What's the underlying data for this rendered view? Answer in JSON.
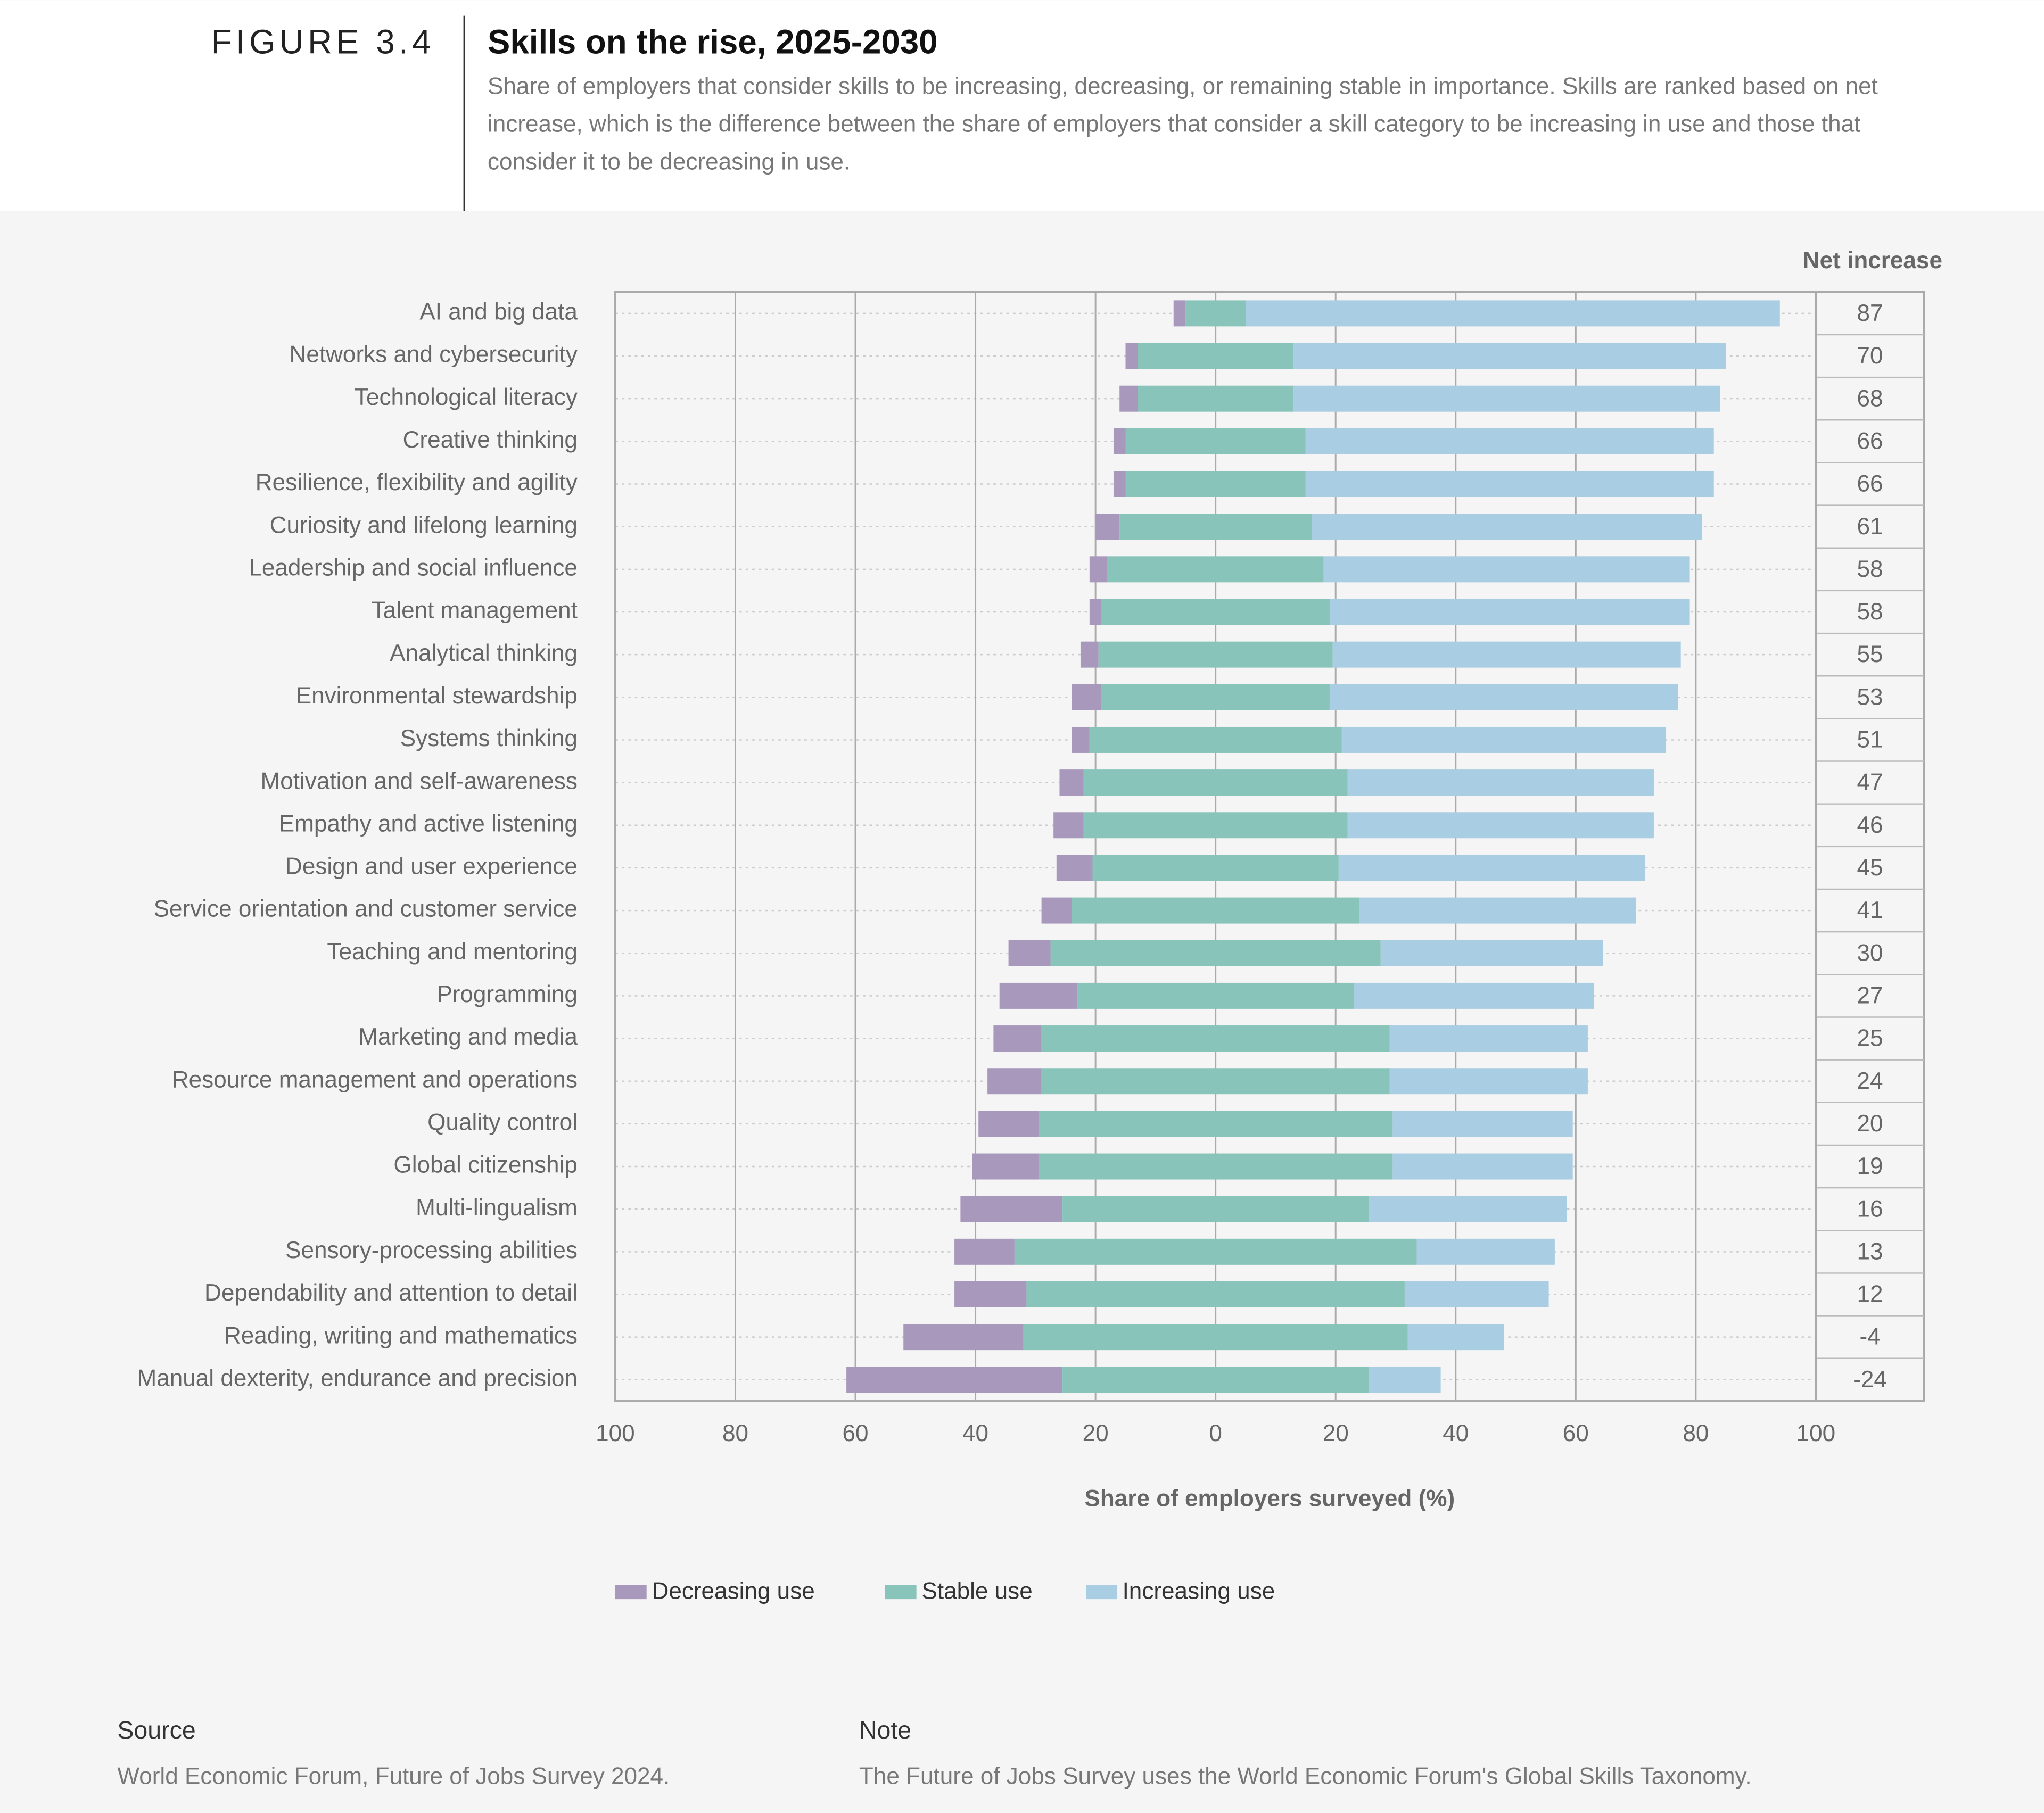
{
  "chart_data": {
    "type": "diverging_bar",
    "figure_label": "FIGURE 3.4",
    "title": "Skills on the rise, 2025-2030",
    "subtitle": "Share of employers that consider skills to be increasing, decreasing, or remaining stable in importance. Skills are ranked based on net increase, which is the difference between the share of employers that consider a skill category to be increasing in use and those that consider it to be decreasing in use.",
    "x_label": "Share of employers surveyed (%)",
    "net_label": "Net increase",
    "categories": [
      "AI and big data",
      "Networks and cybersecurity",
      "Technological literacy",
      "Creative thinking",
      "Resilience, flexibility and agility",
      "Curiosity and lifelong learning",
      "Leadership and social influence",
      "Talent management",
      "Analytical thinking",
      "Environmental stewardship",
      "Systems thinking",
      "Motivation and self-awareness",
      "Empathy and active listening",
      "Design and user experience",
      "Service orientation and customer service",
      "Teaching and mentoring",
      "Programming",
      "Marketing and media",
      "Resource management and operations",
      "Quality control",
      "Global citizenship",
      "Multi-lingualism",
      "Sensory-processing abilities",
      "Dependability and attention to detail",
      "Reading, writing and mathematics",
      "Manual dexterity, endurance and precision"
    ],
    "series": [
      {
        "name": "Decreasing use",
        "color": "#a898bc",
        "values": [
          2,
          2,
          3,
          2,
          2,
          4,
          3,
          2,
          3,
          5,
          3,
          4,
          5,
          6,
          5,
          7,
          13,
          8,
          9,
          10,
          11,
          17,
          10,
          12,
          20,
          36
        ]
      },
      {
        "name": "Stable use",
        "color": "#88c4b9",
        "values": [
          10,
          26,
          26,
          30,
          30,
          32,
          36,
          38,
          39,
          38,
          42,
          44,
          44,
          41,
          48,
          55,
          46,
          58,
          58,
          59,
          59,
          51,
          67,
          63,
          64,
          51
        ]
      },
      {
        "name": "Increasing use",
        "color": "#a9cde2",
        "values": [
          89,
          72,
          71,
          68,
          68,
          65,
          61,
          60,
          58,
          58,
          54,
          51,
          51,
          51,
          46,
          37,
          40,
          33,
          33,
          30,
          30,
          33,
          23,
          24,
          16,
          12
        ]
      }
    ],
    "net_increase": [
      87,
      70,
      68,
      66,
      66,
      61,
      58,
      58,
      55,
      53,
      51,
      47,
      46,
      45,
      41,
      30,
      27,
      25,
      24,
      20,
      19,
      16,
      13,
      12,
      -4,
      -24
    ],
    "xlim": [
      -100,
      100
    ],
    "xticks": [
      {
        "value": -100,
        "label": "100"
      },
      {
        "value": -80,
        "label": "80"
      },
      {
        "value": -60,
        "label": "60"
      },
      {
        "value": -40,
        "label": "40"
      },
      {
        "value": -20,
        "label": "20"
      },
      0,
      20,
      40,
      60,
      80,
      100
    ],
    "grid": true,
    "source_label": "Source",
    "source": "World Economic Forum, Future of Jobs Survey 2024.",
    "note_label": "Note",
    "note": "The Future of Jobs Survey uses the World Economic Forum's Global Skills Taxonomy."
  }
}
